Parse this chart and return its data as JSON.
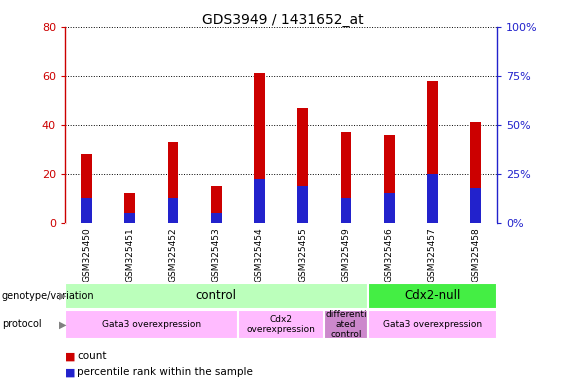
{
  "title": "GDS3949 / 1431652_at",
  "samples": [
    "GSM325450",
    "GSM325451",
    "GSM325452",
    "GSM325453",
    "GSM325454",
    "GSM325455",
    "GSM325459",
    "GSM325456",
    "GSM325457",
    "GSM325458"
  ],
  "count_values": [
    28,
    12,
    33,
    15,
    61,
    47,
    37,
    36,
    58,
    41
  ],
  "percentile_values": [
    10,
    4,
    10,
    4,
    18,
    15,
    10,
    12,
    20,
    14
  ],
  "bar_color_red": "#cc0000",
  "bar_color_blue": "#2222cc",
  "ylim_left": [
    0,
    80
  ],
  "ylim_right": [
    0,
    100
  ],
  "yticks_left": [
    0,
    20,
    40,
    60,
    80
  ],
  "yticks_right": [
    0,
    25,
    50,
    75,
    100
  ],
  "ytick_labels_right": [
    "0%",
    "25%",
    "50%",
    "75%",
    "100%"
  ],
  "genotype_groups": [
    {
      "label": "control",
      "start": 0,
      "end": 7,
      "color": "#bbffbb"
    },
    {
      "label": "Cdx2-null",
      "start": 7,
      "end": 10,
      "color": "#44ee44"
    }
  ],
  "protocol_groups": [
    {
      "label": "Gata3 overexpression",
      "start": 0,
      "end": 4,
      "color": "#ffbbff"
    },
    {
      "label": "Cdx2\noverexpression",
      "start": 4,
      "end": 6,
      "color": "#ffbbff"
    },
    {
      "label": "differenti\nated\ncontrol",
      "start": 6,
      "end": 7,
      "color": "#cc88cc"
    },
    {
      "label": "Gata3 overexpression",
      "start": 7,
      "end": 10,
      "color": "#ffbbff"
    }
  ],
  "legend_count_color": "#cc0000",
  "legend_percentile_color": "#2222cc",
  "tick_area_bg": "#cccccc",
  "bar_width": 0.25,
  "title_fontsize": 10
}
